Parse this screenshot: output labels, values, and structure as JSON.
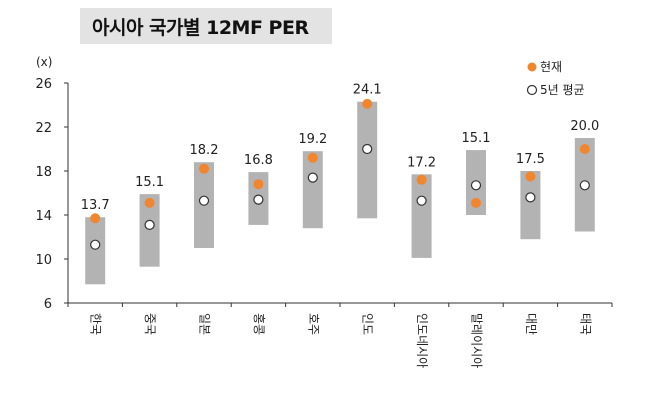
{
  "chart_data": {
    "type": "range-dot",
    "title": "아시아 국가별 12MF PER",
    "y_unit_label": "(x)",
    "ylim": [
      6,
      26
    ],
    "y_ticks": [
      6,
      10,
      14,
      18,
      22,
      26
    ],
    "grid": false,
    "legend_position": "top-right",
    "legend": {
      "current": "현재",
      "avg5y": "5년 평균"
    },
    "colors": {
      "range_bar": "#b3b3b3",
      "current": "#f0862d",
      "avg5y_fill": "#ffffff",
      "avg5y_stroke": "#333333",
      "axis": "#333333"
    },
    "categories": [
      "한국",
      "중국",
      "일본",
      "홍콩",
      "호주",
      "인도",
      "인도네시아",
      "말레이시아",
      "대만",
      "태국"
    ],
    "series": [
      {
        "name": "현재",
        "values": [
          13.7,
          15.1,
          18.2,
          16.8,
          19.2,
          24.1,
          17.2,
          15.1,
          17.5,
          20.0
        ]
      },
      {
        "name": "5년 평균",
        "values": [
          11.3,
          13.1,
          15.3,
          15.4,
          17.4,
          20.0,
          15.3,
          16.7,
          15.6,
          16.7
        ]
      }
    ],
    "range_low": [
      7.7,
      9.3,
      11.0,
      13.1,
      12.8,
      13.7,
      10.1,
      14.0,
      11.8,
      12.5
    ],
    "range_high": [
      13.8,
      15.9,
      18.8,
      17.9,
      19.8,
      24.3,
      17.7,
      19.9,
      18.0,
      21.0
    ],
    "data_labels": [
      "13.7",
      "15.1",
      "18.2",
      "16.8",
      "19.2",
      "24.1",
      "17.2",
      "15.1",
      "17.5",
      "20.0"
    ]
  }
}
